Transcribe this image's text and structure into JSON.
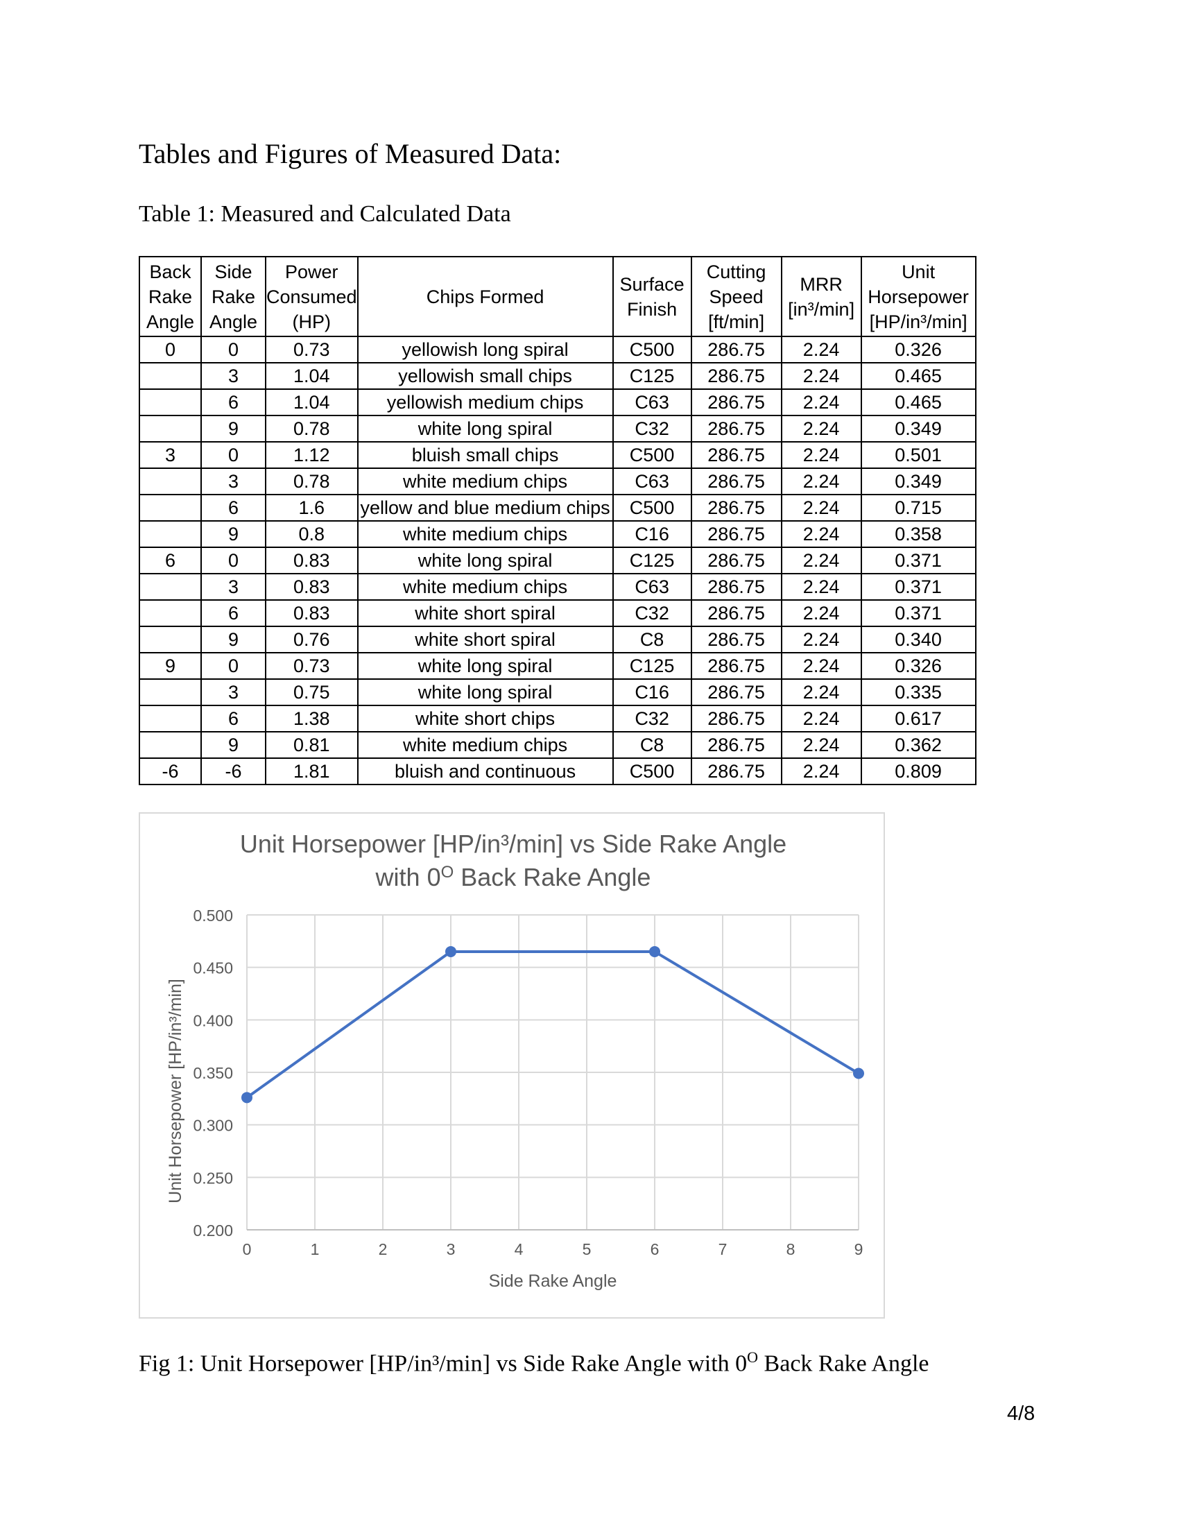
{
  "heading": "Tables and Figures of Measured Data:",
  "table_caption": "Table 1: Measured and Calculated Data",
  "table": {
    "headers": [
      [
        "Back",
        "Rake",
        "Angle"
      ],
      [
        "Side",
        "Rake",
        "Angle"
      ],
      [
        "Power",
        "Consumed",
        "(HP)"
      ],
      [
        "Chips Formed"
      ],
      [
        "Surface",
        "Finish"
      ],
      [
        "Cutting",
        "Speed",
        "[ft/min]"
      ],
      [
        "MRR",
        "[in³/min]"
      ],
      [
        "Unit",
        "Horsepower",
        "[HP/in³/min]"
      ]
    ],
    "rows": [
      [
        "0",
        "0",
        "0.73",
        "yellowish long spiral",
        "C500",
        "286.75",
        "2.24",
        "0.326"
      ],
      [
        "",
        "3",
        "1.04",
        "yellowish small chips",
        "C125",
        "286.75",
        "2.24",
        "0.465"
      ],
      [
        "",
        "6",
        "1.04",
        "yellowish medium chips",
        "C63",
        "286.75",
        "2.24",
        "0.465"
      ],
      [
        "",
        "9",
        "0.78",
        "white long spiral",
        "C32",
        "286.75",
        "2.24",
        "0.349"
      ],
      [
        "3",
        "0",
        "1.12",
        "bluish small chips",
        "C500",
        "286.75",
        "2.24",
        "0.501"
      ],
      [
        "",
        "3",
        "0.78",
        "white medium chips",
        "C63",
        "286.75",
        "2.24",
        "0.349"
      ],
      [
        "",
        "6",
        "1.6",
        "yellow and blue medium chips",
        "C500",
        "286.75",
        "2.24",
        "0.715"
      ],
      [
        "",
        "9",
        "0.8",
        "white medium chips",
        "C16",
        "286.75",
        "2.24",
        "0.358"
      ],
      [
        "6",
        "0",
        "0.83",
        "white long spiral",
        "C125",
        "286.75",
        "2.24",
        "0.371"
      ],
      [
        "",
        "3",
        "0.83",
        "white medium chips",
        "C63",
        "286.75",
        "2.24",
        "0.371"
      ],
      [
        "",
        "6",
        "0.83",
        "white short spiral",
        "C32",
        "286.75",
        "2.24",
        "0.371"
      ],
      [
        "",
        "9",
        "0.76",
        "white short spiral",
        "C8",
        "286.75",
        "2.24",
        "0.340"
      ],
      [
        "9",
        "0",
        "0.73",
        "white long spiral",
        "C125",
        "286.75",
        "2.24",
        "0.326"
      ],
      [
        "",
        "3",
        "0.75",
        "white long spiral",
        "C16",
        "286.75",
        "2.24",
        "0.335"
      ],
      [
        "",
        "6",
        "1.38",
        "white short chips",
        "C32",
        "286.75",
        "2.24",
        "0.617"
      ],
      [
        "",
        "9",
        "0.81",
        "white medium chips",
        "C8",
        "286.75",
        "2.24",
        "0.362"
      ],
      [
        "-6",
        "-6",
        "1.81",
        "bluish and continuous",
        "C500",
        "286.75",
        "2.24",
        "0.809"
      ]
    ]
  },
  "chart_data": {
    "type": "line",
    "title_line1": "Unit Horsepower [HP/in³/min] vs Side Rake Angle",
    "title_line2_prefix": "with 0",
    "title_line2_sup": "O",
    "title_line2_suffix": " Back Rake Angle",
    "xlabel": "Side Rake Angle",
    "ylabel": "Unit Horsepower [HP/in³/min]",
    "xlim": [
      0,
      9
    ],
    "ylim": [
      0.2,
      0.5
    ],
    "xticks": [
      "0",
      "1",
      "2",
      "3",
      "4",
      "5",
      "6",
      "7",
      "8",
      "9"
    ],
    "yticks": [
      "0.500",
      "0.450",
      "0.400",
      "0.350",
      "0.300",
      "0.250",
      "0.200"
    ],
    "grid": true,
    "series": [
      {
        "x": [
          0,
          3,
          6,
          9
        ],
        "y": [
          0.326,
          0.465,
          0.465,
          0.349
        ],
        "color": "#4472c4"
      }
    ]
  },
  "figure_caption": {
    "prefix": "Fig 1: Unit Horsepower [HP/in³/min] vs Side Rake Angle with 0",
    "sup": "O",
    "suffix": " Back Rake Angle"
  },
  "page_number": "4/8"
}
